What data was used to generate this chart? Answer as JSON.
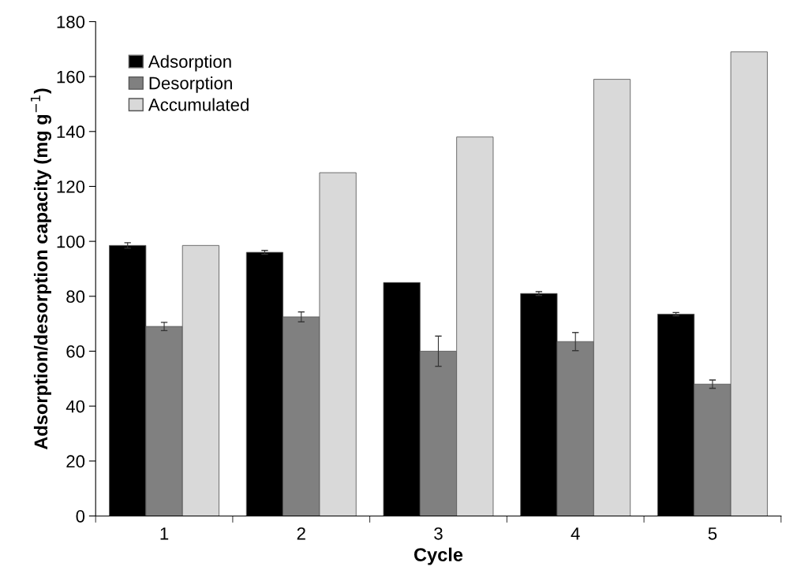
{
  "chart_data": {
    "type": "bar",
    "xlabel": "Cycle",
    "ylabel": "Adsorption/desorption capacity (mg g$^{−1}$)",
    "categories": [
      "1",
      "2",
      "3",
      "4",
      "5"
    ],
    "series": [
      {
        "name": "Adsorption",
        "color": "#000000",
        "values": [
          98.5,
          96,
          85,
          81,
          73.5
        ],
        "errors": [
          1,
          0.7,
          null,
          0.7,
          0.6
        ]
      },
      {
        "name": "Desorption",
        "color": "#808080",
        "values": [
          69,
          72.5,
          60,
          63.5,
          48
        ],
        "errors": [
          1.5,
          1.8,
          5.5,
          3.3,
          1.5
        ]
      },
      {
        "name": "Accumulated",
        "color": "#d9d9d9",
        "values": [
          98.5,
          125,
          138,
          159,
          169
        ]
      }
    ],
    "ylim": [
      0,
      180
    ],
    "yticks": [
      0,
      20,
      40,
      60,
      80,
      100,
      120,
      140,
      160,
      180
    ],
    "grid": false,
    "legend": "top left"
  }
}
